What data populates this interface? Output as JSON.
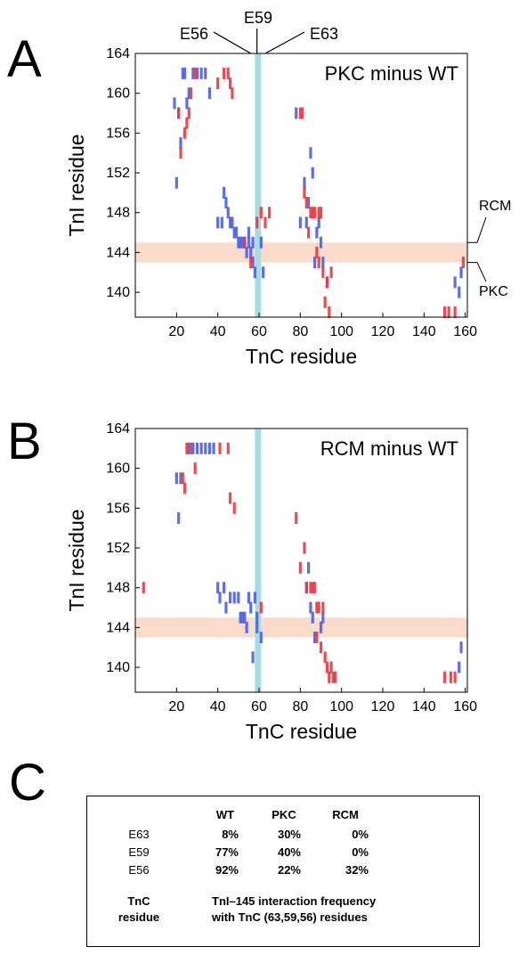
{
  "colors": {
    "positive": "#e8393e",
    "negative": "#4a5fe6",
    "rcm_band": "#fbdccb",
    "e59_band": "#a9dbe4"
  },
  "chart_data": [
    {
      "type": "scatter",
      "panel": "A",
      "title": "PKC minus WT",
      "xlabel": "TnC residue",
      "ylabel": "TnI residue",
      "xlim": [
        0,
        161
      ],
      "ylim": [
        137.5,
        164
      ],
      "xticks": [
        20,
        40,
        60,
        80,
        100,
        120,
        140,
        160
      ],
      "yticks": [
        140,
        144,
        148,
        152,
        156,
        160,
        164
      ],
      "top_annotations": [
        "E56",
        "E59",
        "E63"
      ],
      "side_annotations": [
        "RCM",
        "PKC"
      ],
      "bands": {
        "horizontal": [
          143,
          145
        ],
        "vertical": [
          58,
          61
        ]
      },
      "points": {
        "negative": [
          [
            19,
            159
          ],
          [
            20,
            151
          ],
          [
            21,
            158
          ],
          [
            22,
            155
          ],
          [
            23,
            162
          ],
          [
            24,
            162
          ],
          [
            25,
            159
          ],
          [
            26,
            160
          ],
          [
            28,
            162
          ],
          [
            30,
            162
          ],
          [
            32,
            162
          ],
          [
            34,
            162
          ],
          [
            36,
            160
          ],
          [
            40,
            147
          ],
          [
            42,
            147
          ],
          [
            43,
            150
          ],
          [
            44,
            149
          ],
          [
            45,
            148
          ],
          [
            46,
            147
          ],
          [
            47,
            147
          ],
          [
            48,
            146
          ],
          [
            49,
            146
          ],
          [
            50,
            145
          ],
          [
            51,
            145
          ],
          [
            52,
            145
          ],
          [
            53,
            145
          ],
          [
            54,
            144
          ],
          [
            55,
            146
          ],
          [
            55,
            145
          ],
          [
            56,
            144
          ],
          [
            57,
            145
          ],
          [
            57,
            143
          ],
          [
            58,
            142
          ],
          [
            61,
            145
          ],
          [
            62,
            142
          ],
          [
            78,
            158
          ],
          [
            80,
            147
          ],
          [
            82,
            151
          ],
          [
            83,
            147
          ],
          [
            84,
            149
          ],
          [
            85,
            154
          ],
          [
            86,
            152
          ],
          [
            87,
            143
          ],
          [
            88,
            146
          ],
          [
            89,
            147
          ],
          [
            90,
            145
          ],
          [
            91,
            143
          ],
          [
            93,
            141
          ],
          [
            155,
            141
          ],
          [
            157,
            140
          ],
          [
            158,
            142
          ]
        ],
        "positive": [
          [
            21,
            158
          ],
          [
            22,
            154
          ],
          [
            24,
            156
          ],
          [
            25,
            157
          ],
          [
            26,
            158
          ],
          [
            27,
            160
          ],
          [
            29,
            162
          ],
          [
            40,
            161
          ],
          [
            43,
            162
          ],
          [
            45,
            162
          ],
          [
            46,
            161
          ],
          [
            47,
            160
          ],
          [
            53,
            145
          ],
          [
            56,
            143
          ],
          [
            59,
            147
          ],
          [
            61,
            148
          ],
          [
            63,
            147
          ],
          [
            65,
            148
          ],
          [
            80,
            158
          ],
          [
            81,
            158
          ],
          [
            82,
            150
          ],
          [
            83,
            149
          ],
          [
            84,
            146
          ],
          [
            85,
            148
          ],
          [
            86,
            148
          ],
          [
            87,
            148
          ],
          [
            88,
            144
          ],
          [
            89,
            143
          ],
          [
            89,
            148
          ],
          [
            90,
            148
          ],
          [
            91,
            142
          ],
          [
            92,
            139
          ],
          [
            93,
            141
          ],
          [
            94,
            138
          ],
          [
            95,
            142
          ],
          [
            150,
            138
          ],
          [
            152,
            138
          ],
          [
            155,
            138
          ],
          [
            159,
            143
          ]
        ]
      }
    },
    {
      "type": "scatter",
      "panel": "B",
      "title": "RCM minus WT",
      "xlabel": "TnC residue",
      "ylabel": "TnI residue",
      "xlim": [
        0,
        161
      ],
      "ylim": [
        137.5,
        164
      ],
      "xticks": [
        20,
        40,
        60,
        80,
        100,
        120,
        140,
        160
      ],
      "yticks": [
        140,
        144,
        148,
        152,
        156,
        160,
        164
      ],
      "bands": {
        "horizontal": [
          143,
          145
        ],
        "vertical": [
          58,
          61
        ]
      },
      "points": {
        "negative": [
          [
            20,
            159
          ],
          [
            21,
            155
          ],
          [
            22,
            159
          ],
          [
            26,
            162
          ],
          [
            28,
            162
          ],
          [
            30,
            162
          ],
          [
            32,
            162
          ],
          [
            34,
            162
          ],
          [
            36,
            162
          ],
          [
            38,
            162
          ],
          [
            40,
            148
          ],
          [
            41,
            147
          ],
          [
            43,
            148
          ],
          [
            44,
            146
          ],
          [
            46,
            147
          ],
          [
            48,
            147
          ],
          [
            50,
            147
          ],
          [
            51,
            145
          ],
          [
            52,
            145
          ],
          [
            53,
            145
          ],
          [
            54,
            144
          ],
          [
            55,
            147
          ],
          [
            56,
            146
          ],
          [
            57,
            141
          ],
          [
            58,
            147
          ],
          [
            59,
            145
          ],
          [
            59,
            144
          ],
          [
            61,
            143
          ],
          [
            83,
            148
          ],
          [
            84,
            150
          ],
          [
            85,
            146
          ],
          [
            86,
            145
          ],
          [
            87,
            143
          ],
          [
            90,
            144
          ],
          [
            91,
            145
          ],
          [
            157,
            140
          ],
          [
            158,
            142
          ]
        ],
        "positive": [
          [
            4,
            148
          ],
          [
            23,
            159
          ],
          [
            24,
            158
          ],
          [
            25,
            162
          ],
          [
            27,
            162
          ],
          [
            29,
            160
          ],
          [
            41,
            162
          ],
          [
            45,
            162
          ],
          [
            46,
            157
          ],
          [
            48,
            156
          ],
          [
            61,
            146
          ],
          [
            78,
            155
          ],
          [
            80,
            150
          ],
          [
            82,
            152
          ],
          [
            83,
            148
          ],
          [
            85,
            148
          ],
          [
            86,
            148
          ],
          [
            87,
            148
          ],
          [
            88,
            146
          ],
          [
            88,
            143
          ],
          [
            89,
            146
          ],
          [
            90,
            142
          ],
          [
            91,
            146
          ],
          [
            92,
            141
          ],
          [
            93,
            140
          ],
          [
            94,
            139
          ],
          [
            95,
            140
          ],
          [
            96,
            139
          ],
          [
            97,
            139
          ],
          [
            150,
            139
          ],
          [
            153,
            139
          ],
          [
            155,
            139
          ]
        ]
      }
    },
    {
      "type": "table",
      "panel": "C",
      "columns": [
        "WT",
        "PKC",
        "RCM"
      ],
      "rows": [
        {
          "residue": "E63",
          "WT": "8%",
          "PKC": "30%",
          "RCM": "0%"
        },
        {
          "residue": "E59",
          "WT": "77%",
          "PKC": "40%",
          "RCM": "0%"
        },
        {
          "residue": "E56",
          "WT": "92%",
          "PKC": "22%",
          "RCM": "32%"
        }
      ],
      "row_header": [
        "TnC",
        "residue"
      ],
      "caption": [
        "TnI–145 interaction frequency",
        "with TnC (63,59,56) residues"
      ]
    }
  ],
  "panels": {
    "A": {
      "letter": "A"
    },
    "B": {
      "letter": "B"
    },
    "C": {
      "letter": "C"
    }
  }
}
